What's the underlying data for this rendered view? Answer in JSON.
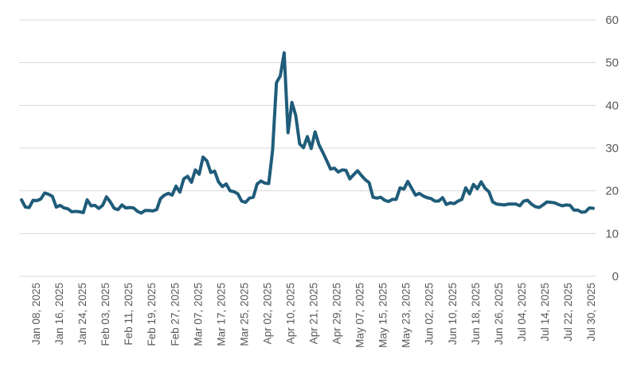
{
  "chart_data": {
    "type": "line",
    "title": "",
    "xlabel": "",
    "ylabel": "",
    "ylim": [
      0,
      60
    ],
    "yticks": [
      0,
      10,
      20,
      30,
      40,
      50,
      60
    ],
    "y_axis_side": "right",
    "grid": "horizontal",
    "legend": "none",
    "line_color": "#1f5c7a",
    "x_tick_labels": [
      "Jan 08, 2025",
      "Jan 16, 2025",
      "Jan 24, 2025",
      "Feb 03, 2025",
      "Feb 11, 2025",
      "Feb 19, 2025",
      "Feb 27, 2025",
      "Mar 07, 2025",
      "Mar 17, 2025",
      "Mar 25, 2025",
      "Apr 02, 2025",
      "Apr 10, 2025",
      "Apr 21, 2025",
      "Apr 29, 2025",
      "May 07, 2025",
      "May 15, 2025",
      "May 23, 2025",
      "Jun 02, 2025",
      "Jun 10, 2025",
      "Jun 18, 2025",
      "Jun 26, 2025",
      "Jul 04, 2025",
      "Jul 14, 2025",
      "Jul 22, 2025",
      "Jul 30, 2025"
    ],
    "series": [
      {
        "values": [
          17.9,
          16.2,
          16.1,
          17.8,
          17.7,
          18.1,
          19.5,
          19.2,
          18.7,
          16.2,
          16.6,
          16.0,
          15.8,
          15.1,
          15.2,
          15.1,
          14.9,
          17.9,
          16.5,
          16.6,
          15.9,
          16.6,
          18.6,
          17.4,
          15.9,
          15.6,
          16.7,
          16.0,
          16.1,
          16.0,
          15.2,
          14.8,
          15.4,
          15.4,
          15.3,
          15.6,
          18.2,
          19.0,
          19.4,
          19.0,
          21.1,
          19.7,
          22.8,
          23.4,
          22.0,
          24.9,
          23.9,
          27.9,
          27.0,
          24.3,
          24.6,
          22.1,
          21.0,
          21.6,
          20.0,
          19.8,
          19.3,
          17.6,
          17.3,
          18.3,
          18.5,
          21.6,
          22.3,
          21.8,
          21.7,
          29.5,
          45.3,
          46.9,
          52.3,
          33.6,
          40.7,
          37.6,
          31.0,
          30.1,
          32.7,
          29.9,
          33.8,
          30.8,
          29.0,
          27.1,
          25.1,
          25.3,
          24.4,
          24.9,
          24.8,
          22.8,
          23.8,
          24.7,
          23.6,
          22.6,
          21.9,
          18.5,
          18.3,
          18.5,
          17.8,
          17.5,
          18.0,
          18.0,
          20.7,
          20.4,
          22.2,
          20.6,
          19.0,
          19.4,
          18.8,
          18.4,
          18.2,
          17.6,
          17.6,
          18.4,
          16.8,
          17.2,
          17.0,
          17.6,
          18.0,
          20.7,
          19.3,
          21.5,
          20.5,
          22.1,
          20.6,
          19.8,
          17.4,
          16.9,
          16.8,
          16.7,
          16.9,
          16.9,
          16.9,
          16.5,
          17.6,
          17.8,
          16.9,
          16.3,
          16.1,
          16.7,
          17.4,
          17.3,
          17.2,
          16.8,
          16.5,
          16.7,
          16.6,
          15.5,
          15.5,
          15.0,
          15.1,
          16.0,
          15.9
        ]
      }
    ]
  }
}
